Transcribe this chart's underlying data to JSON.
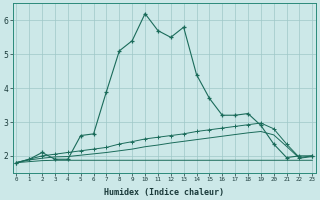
{
  "xlabel": "Humidex (Indice chaleur)",
  "bg_color": "#cce8e8",
  "grid_color": "#9fc8c8",
  "line_color": "#1a6b5a",
  "x_min": 0,
  "x_max": 23,
  "y_min": 1.5,
  "y_max": 6.5,
  "series1": {
    "x": [
      0,
      1,
      2,
      3,
      4,
      5,
      6,
      7,
      8,
      9,
      10,
      11,
      12,
      13,
      14,
      15,
      16,
      17,
      18,
      19,
      20,
      21,
      22,
      23
    ],
    "y": [
      1.8,
      1.9,
      2.1,
      1.9,
      1.9,
      2.6,
      2.65,
      3.9,
      5.1,
      5.4,
      6.2,
      5.7,
      5.5,
      5.8,
      4.4,
      3.7,
      3.2,
      3.2,
      3.25,
      2.9,
      2.35,
      1.95,
      2.0,
      2.0
    ]
  },
  "series2": {
    "x": [
      0,
      1,
      2,
      3,
      4,
      5,
      6,
      7,
      8,
      9,
      10,
      11,
      12,
      13,
      14,
      15,
      16,
      17,
      18,
      19,
      20,
      21,
      22,
      23
    ],
    "y": [
      1.8,
      1.9,
      2.0,
      2.05,
      2.1,
      2.15,
      2.2,
      2.25,
      2.35,
      2.42,
      2.5,
      2.55,
      2.6,
      2.65,
      2.72,
      2.77,
      2.82,
      2.87,
      2.92,
      2.97,
      2.8,
      2.35,
      1.95,
      2.0
    ]
  },
  "series3": {
    "x": [
      0,
      1,
      2,
      3,
      4,
      5,
      6,
      7,
      8,
      9,
      10,
      11,
      12,
      13,
      14,
      15,
      16,
      17,
      18,
      19,
      20,
      21,
      22,
      23
    ],
    "y": [
      1.8,
      1.88,
      1.93,
      1.97,
      1.98,
      2.02,
      2.06,
      2.1,
      2.15,
      2.2,
      2.27,
      2.32,
      2.38,
      2.43,
      2.48,
      2.53,
      2.58,
      2.63,
      2.68,
      2.72,
      2.62,
      2.28,
      1.93,
      1.98
    ]
  },
  "series4": {
    "x": [
      0,
      1,
      2,
      3,
      4,
      5,
      6,
      7,
      8,
      9,
      10,
      11,
      12,
      13,
      14,
      15,
      16,
      17,
      18,
      19,
      20,
      21,
      22,
      23
    ],
    "y": [
      1.8,
      1.83,
      1.86,
      1.87,
      1.87,
      1.87,
      1.87,
      1.87,
      1.87,
      1.87,
      1.87,
      1.87,
      1.87,
      1.87,
      1.87,
      1.87,
      1.87,
      1.87,
      1.87,
      1.87,
      1.87,
      1.87,
      1.87,
      1.87
    ]
  }
}
